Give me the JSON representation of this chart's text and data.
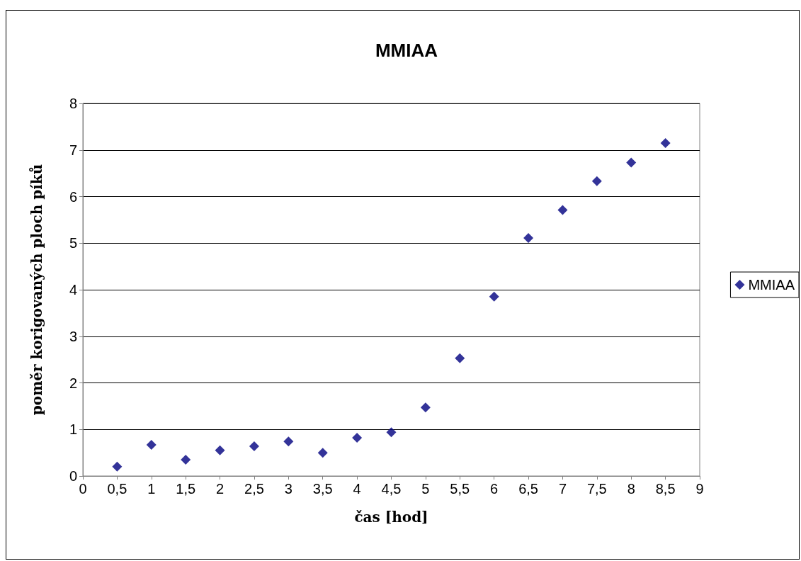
{
  "chart_data": {
    "type": "scatter",
    "title": "MMIAA",
    "xlabel": "čas [hod]",
    "ylabel": "poměr korigovaných ploch píků",
    "x": [
      0.5,
      1,
      1.5,
      2,
      2.5,
      3,
      3.5,
      4,
      4.5,
      5,
      5.5,
      6,
      6.5,
      7,
      7.5,
      8,
      8.5
    ],
    "series": [
      {
        "name": "MMIAA",
        "color": "#000080",
        "values": [
          0.2,
          0.67,
          0.35,
          0.55,
          0.64,
          0.74,
          0.5,
          0.82,
          0.94,
          1.47,
          2.53,
          3.85,
          5.11,
          5.71,
          6.33,
          6.73,
          7.15
        ]
      }
    ],
    "xlim": [
      0,
      9
    ],
    "xticks": [
      0,
      {
        "value": 0.5,
        "label": "0,5"
      },
      1,
      {
        "value": 1.5,
        "label": "1,5"
      },
      2,
      {
        "value": 2.5,
        "label": "2,5"
      },
      3,
      {
        "value": 3.5,
        "label": "3,5"
      },
      4,
      {
        "value": 4.5,
        "label": "4,5"
      },
      5,
      {
        "value": 5.5,
        "label": "5,5"
      },
      6,
      {
        "value": 6.5,
        "label": "6,5"
      },
      7,
      {
        "value": 7.5,
        "label": "7,5"
      },
      8,
      {
        "value": 8.5,
        "label": "8,5"
      },
      9
    ],
    "ylim": [
      0,
      8
    ],
    "yticks": [
      0,
      1,
      2,
      3,
      4,
      5,
      6,
      7,
      8
    ],
    "grid": "y",
    "legend": "right",
    "marker": "diamond"
  }
}
